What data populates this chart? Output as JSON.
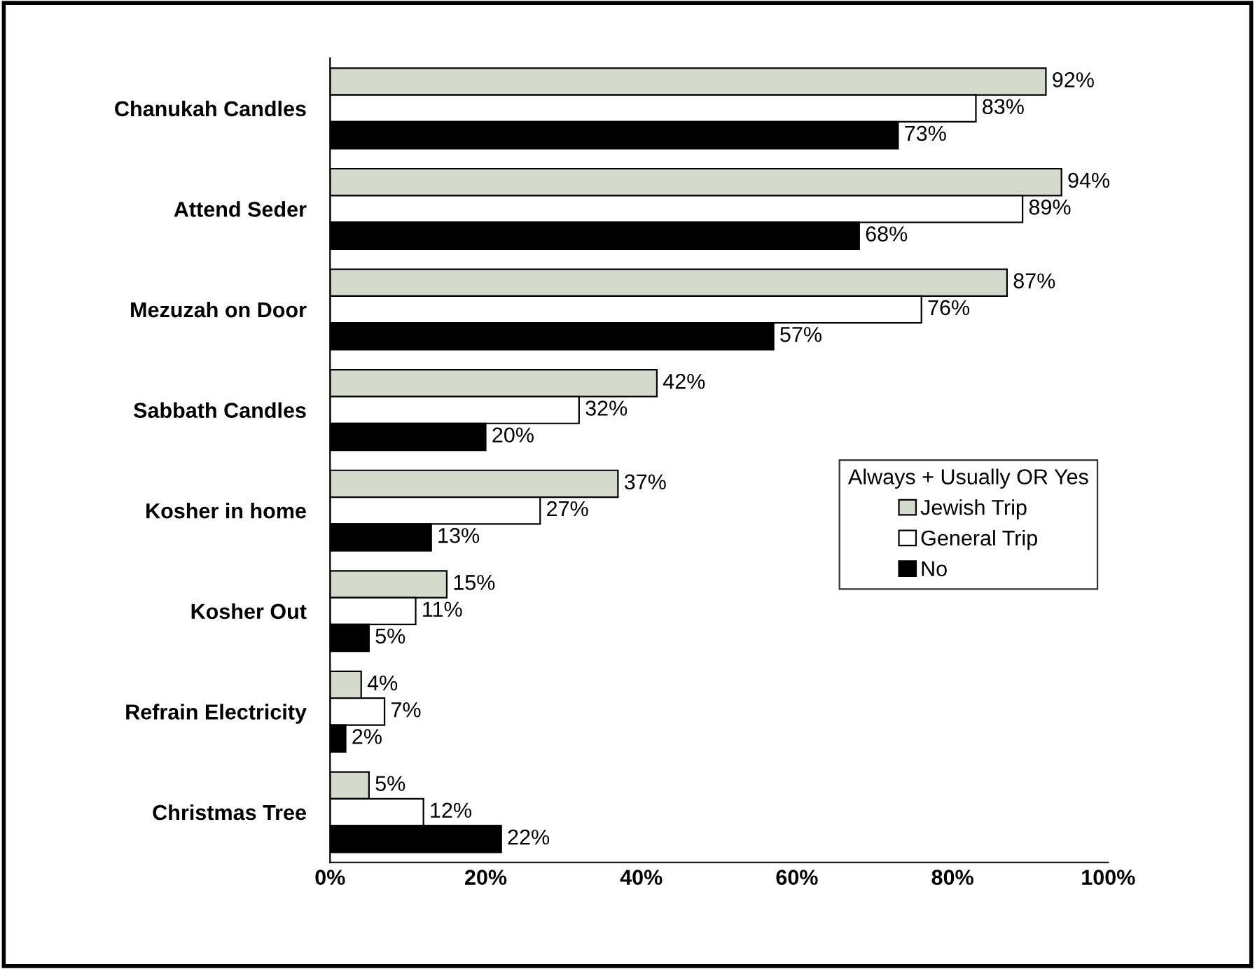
{
  "chart_data": {
    "type": "bar",
    "orientation": "horizontal",
    "categories": [
      "Chanukah Candles",
      "Attend Seder",
      "Mezuzah on Door",
      "Sabbath Candles",
      "Kosher in home",
      "Kosher Out",
      "Refrain Electricity",
      "Christmas Tree"
    ],
    "series": [
      {
        "name": "Jewish Trip",
        "color": "#d4dbcc",
        "values": [
          92,
          94,
          87,
          42,
          37,
          15,
          4,
          5
        ],
        "value_labels": [
          "92%",
          "94%",
          "87%",
          "42%",
          "37%",
          "15%",
          "4%",
          "5%"
        ]
      },
      {
        "name": "General Trip",
        "color": "#ffffff",
        "values": [
          83,
          89,
          76,
          32,
          27,
          11,
          7,
          12
        ],
        "value_labels": [
          "83%",
          "89%",
          "76%",
          "32%",
          "27%",
          "11%",
          "7%",
          "12%"
        ]
      },
      {
        "name": "No",
        "color": "#000000",
        "values": [
          73,
          68,
          57,
          20,
          13,
          5,
          2,
          22
        ],
        "value_labels": [
          "73%",
          "68%",
          "57%",
          "20%",
          "13%",
          "5%",
          "2%",
          "22%"
        ]
      }
    ],
    "xlim": [
      0,
      100
    ],
    "xticks": [
      {
        "value": 0,
        "label": "0%"
      },
      {
        "value": 20,
        "label": "20%"
      },
      {
        "value": 40,
        "label": "40%"
      },
      {
        "value": 60,
        "label": "60%"
      },
      {
        "value": 80,
        "label": "80%"
      },
      {
        "value": 100,
        "label": "100%"
      }
    ],
    "legend": "right",
    "legend_title": "Always + Usually OR Yes",
    "grid": false
  }
}
